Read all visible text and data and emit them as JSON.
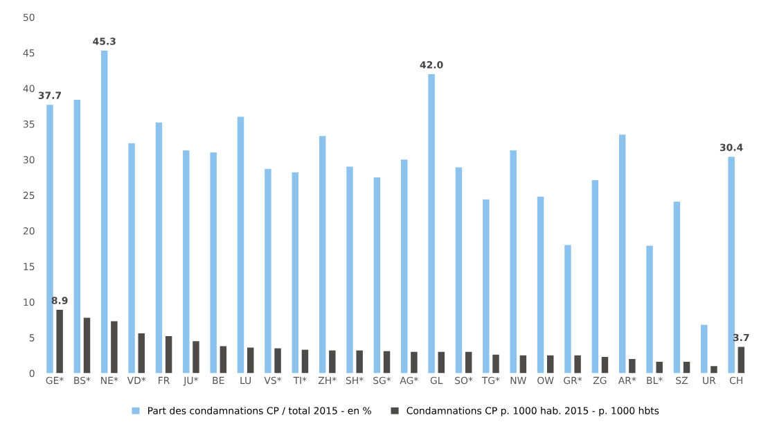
{
  "chart_data": {
    "type": "bar",
    "categories": [
      "GE*",
      "BS*",
      "NE*",
      "VD*",
      "FR",
      "JU*",
      "BE",
      "LU",
      "VS*",
      "TI*",
      "ZH*",
      "SH*",
      "SG*",
      "AG*",
      "GL",
      "SO*",
      "TG*",
      "NW",
      "OW",
      "GR*",
      "ZG",
      "AR*",
      "BL*",
      "SZ",
      "UR",
      "CH"
    ],
    "series": [
      {
        "name": "Part des condamnations CP / total 2015 - en %",
        "color": "#8cc3ee",
        "values": [
          37.7,
          38.4,
          45.3,
          32.3,
          35.2,
          31.3,
          31.0,
          36.0,
          28.7,
          28.2,
          33.3,
          29.0,
          27.5,
          30.0,
          42.0,
          28.9,
          24.4,
          31.3,
          24.8,
          18.0,
          27.1,
          33.5,
          17.9,
          24.1,
          6.8,
          30.4
        ],
        "value_labels": [
          "37.7",
          null,
          "45.3",
          null,
          null,
          null,
          null,
          null,
          null,
          null,
          null,
          null,
          null,
          null,
          "42.0",
          null,
          null,
          null,
          null,
          null,
          null,
          null,
          null,
          null,
          null,
          "30.4"
        ]
      },
      {
        "name": "Condamnations CP p. 1000 hab. 2015 - p. 1000 hbts",
        "color": "#4d4a4a",
        "values": [
          8.9,
          7.8,
          7.3,
          5.6,
          5.2,
          4.5,
          3.8,
          3.6,
          3.5,
          3.3,
          3.2,
          3.2,
          3.1,
          3.0,
          3.0,
          3.0,
          2.6,
          2.5,
          2.5,
          2.5,
          2.3,
          2.0,
          1.6,
          1.6,
          1.0,
          3.7
        ],
        "value_labels": [
          "8.9",
          null,
          null,
          null,
          null,
          null,
          null,
          null,
          null,
          null,
          null,
          null,
          null,
          null,
          null,
          null,
          null,
          null,
          null,
          null,
          null,
          null,
          null,
          null,
          null,
          "3.7"
        ]
      }
    ],
    "ylim": [
      0,
      50
    ],
    "yticks": [
      0,
      5,
      10,
      15,
      20,
      25,
      30,
      35,
      40,
      45,
      50
    ],
    "grid": false,
    "legend": "bottom"
  }
}
